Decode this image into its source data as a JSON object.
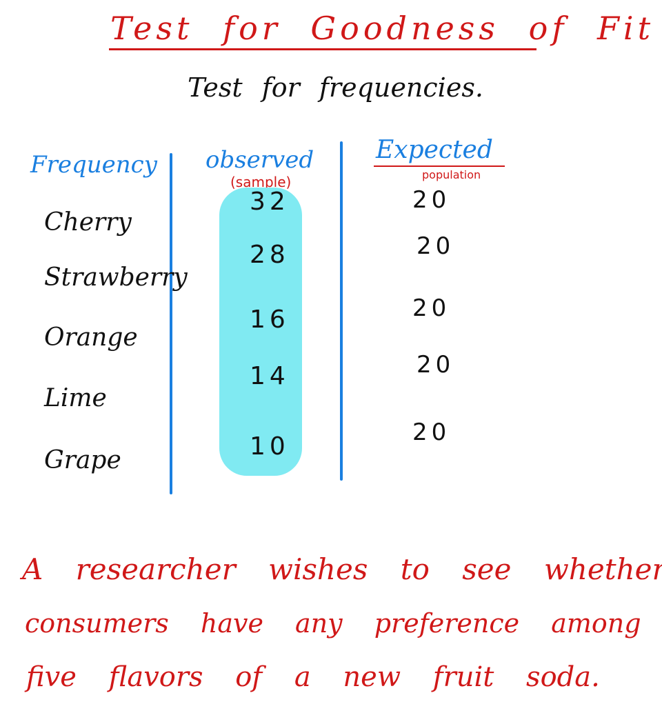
{
  "header": {
    "title": "Test for Goodness of Fit",
    "subtitle": "Test for frequencies."
  },
  "table": {
    "columns": [
      {
        "label": "Frequency"
      },
      {
        "label": "observed",
        "note": "(sample)"
      },
      {
        "label": "Expected",
        "note": "population"
      }
    ],
    "rows": [
      [
        "Cherry",
        32,
        20
      ],
      [
        "Strawberry",
        28,
        20
      ],
      [
        "Orange",
        16,
        20
      ],
      [
        "Lime",
        14,
        20
      ],
      [
        "Grape",
        10,
        20
      ]
    ]
  },
  "problem": {
    "lines": [
      "A researcher wishes to see whether",
      "consumers have any preference among",
      "five flavors of a new fruit soda."
    ]
  }
}
